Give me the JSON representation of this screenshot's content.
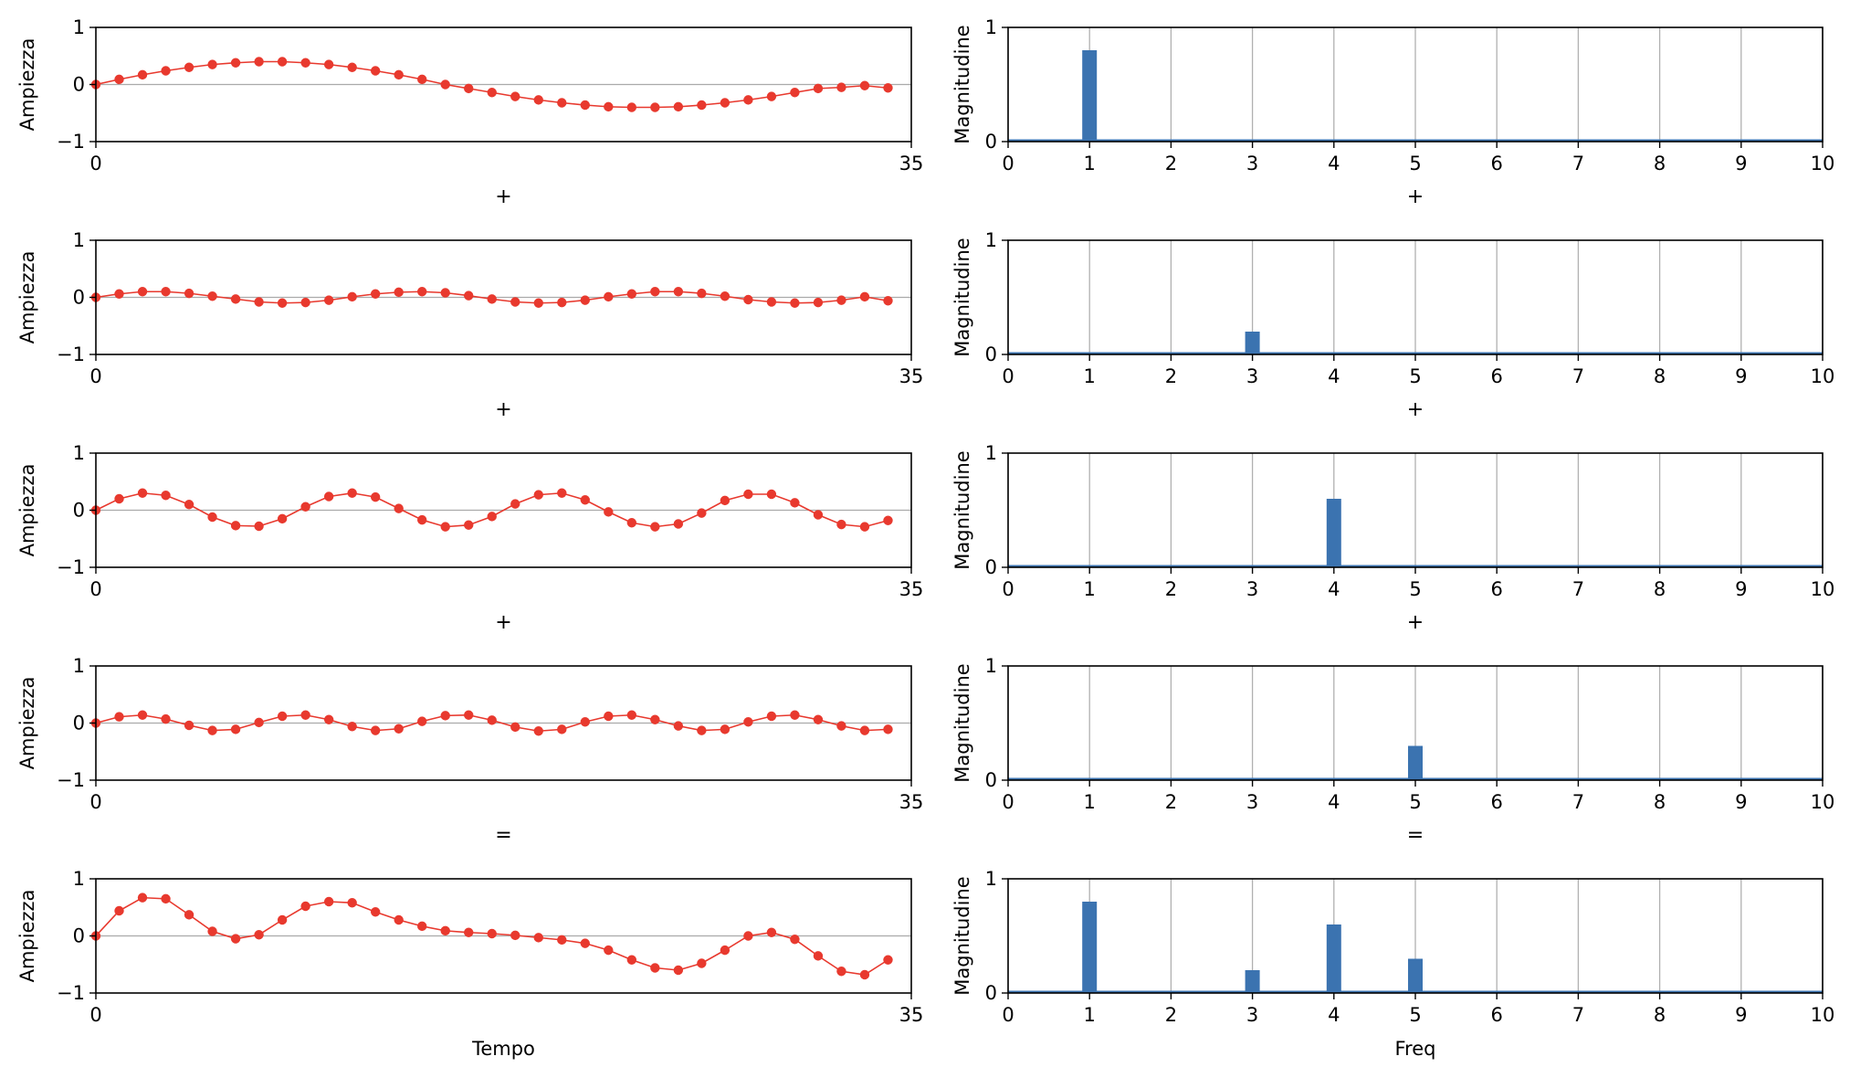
{
  "colors": {
    "time_line": "#e8392e",
    "freq_bar": "#3b73b0",
    "axis": "#000000",
    "grid": "#b0b0b0",
    "baseline": "#aaaaaa"
  },
  "chart_data": [
    {
      "type": "line",
      "ylabel": "Ampiezza",
      "xlim": [
        0,
        35
      ],
      "ylim": [
        -1,
        1
      ],
      "xticks": [
        "0",
        "35"
      ],
      "yticks": [
        "−1",
        "0",
        "1"
      ],
      "x": [
        0,
        1,
        2,
        3,
        4,
        5,
        6,
        7,
        8,
        9,
        10,
        11,
        12,
        13,
        14,
        15,
        16,
        17,
        18,
        19,
        20,
        21,
        22,
        23,
        24,
        25,
        26,
        27,
        28,
        29,
        30,
        31,
        32,
        33,
        34
      ],
      "values": [
        0.0,
        0.09,
        0.17,
        0.24,
        0.3,
        0.35,
        0.38,
        0.4,
        0.4,
        0.38,
        0.35,
        0.3,
        0.24,
        0.17,
        0.09,
        0.0,
        -0.07,
        -0.14,
        -0.21,
        -0.27,
        -0.32,
        -0.36,
        -0.39,
        -0.4,
        -0.4,
        -0.39,
        -0.36,
        -0.32,
        -0.27,
        -0.21,
        -0.14,
        -0.07,
        -0.05,
        -0.02,
        -0.06
      ],
      "operator": "+"
    },
    {
      "type": "line",
      "ylabel": "Ampiezza",
      "xlim": [
        0,
        35
      ],
      "ylim": [
        -1,
        1
      ],
      "xticks": [
        "0",
        "35"
      ],
      "yticks": [
        "−1",
        "0",
        "1"
      ],
      "x": [
        0,
        1,
        2,
        3,
        4,
        5,
        6,
        7,
        8,
        9,
        10,
        11,
        12,
        13,
        14,
        15,
        16,
        17,
        18,
        19,
        20,
        21,
        22,
        23,
        24,
        25,
        26,
        27,
        28,
        29,
        30,
        31,
        32,
        33,
        34
      ],
      "values": [
        0.0,
        0.06,
        0.1,
        0.1,
        0.07,
        0.02,
        -0.03,
        -0.08,
        -0.1,
        -0.09,
        -0.05,
        0.01,
        0.06,
        0.09,
        0.1,
        0.08,
        0.03,
        -0.03,
        -0.08,
        -0.1,
        -0.09,
        -0.05,
        0.01,
        0.06,
        0.1,
        0.1,
        0.07,
        0.02,
        -0.04,
        -0.08,
        -0.1,
        -0.09,
        -0.05,
        0.01,
        -0.06
      ],
      "operator": "+"
    },
    {
      "type": "line",
      "ylabel": "Ampiezza",
      "xlim": [
        0,
        35
      ],
      "ylim": [
        -1,
        1
      ],
      "xticks": [
        "0",
        "35"
      ],
      "yticks": [
        "−1",
        "0",
        "1"
      ],
      "x": [
        0,
        1,
        2,
        3,
        4,
        5,
        6,
        7,
        8,
        9,
        10,
        11,
        12,
        13,
        14,
        15,
        16,
        17,
        18,
        19,
        20,
        21,
        22,
        23,
        24,
        25,
        26,
        27,
        28,
        29,
        30,
        31,
        32,
        33,
        34
      ],
      "values": [
        0.0,
        0.2,
        0.3,
        0.26,
        0.1,
        -0.12,
        -0.27,
        -0.28,
        -0.15,
        0.06,
        0.24,
        0.3,
        0.23,
        0.03,
        -0.17,
        -0.29,
        -0.26,
        -0.11,
        0.11,
        0.27,
        0.3,
        0.18,
        -0.03,
        -0.22,
        -0.29,
        -0.24,
        -0.05,
        0.17,
        0.28,
        0.28,
        0.13,
        -0.08,
        -0.25,
        -0.29,
        -0.18
      ],
      "operator": "+"
    },
    {
      "type": "line",
      "ylabel": "Ampiezza",
      "xlim": [
        0,
        35
      ],
      "ylim": [
        -1,
        1
      ],
      "xticks": [
        "0",
        "35"
      ],
      "yticks": [
        "−1",
        "0",
        "1"
      ],
      "x": [
        0,
        1,
        2,
        3,
        4,
        5,
        6,
        7,
        8,
        9,
        10,
        11,
        12,
        13,
        14,
        15,
        16,
        17,
        18,
        19,
        20,
        21,
        22,
        23,
        24,
        25,
        26,
        27,
        28,
        29,
        30,
        31,
        32,
        33,
        34
      ],
      "values": [
        0.0,
        0.11,
        0.14,
        0.07,
        -0.04,
        -0.13,
        -0.11,
        0.01,
        0.12,
        0.14,
        0.06,
        -0.06,
        -0.13,
        -0.1,
        0.03,
        0.13,
        0.14,
        0.05,
        -0.07,
        -0.14,
        -0.11,
        0.02,
        0.12,
        0.14,
        0.06,
        -0.05,
        -0.13,
        -0.11,
        0.02,
        0.12,
        0.14,
        0.06,
        -0.05,
        -0.13,
        -0.11
      ],
      "operator": "="
    },
    {
      "type": "line",
      "ylabel": "Ampiezza",
      "xlabel": "Tempo",
      "xlim": [
        0,
        35
      ],
      "ylim": [
        -1,
        1
      ],
      "xticks": [
        "0",
        "35"
      ],
      "yticks": [
        "−1",
        "0",
        "1"
      ],
      "x": [
        0,
        1,
        2,
        3,
        4,
        5,
        6,
        7,
        8,
        9,
        10,
        11,
        12,
        13,
        14,
        15,
        16,
        17,
        18,
        19,
        20,
        21,
        22,
        23,
        24,
        25,
        26,
        27,
        28,
        29,
        30,
        31,
        32,
        33,
        34
      ],
      "values": [
        0.0,
        0.44,
        0.67,
        0.65,
        0.37,
        0.08,
        -0.05,
        0.02,
        0.28,
        0.52,
        0.6,
        0.58,
        0.42,
        0.28,
        0.17,
        0.09,
        0.06,
        0.04,
        0.01,
        -0.03,
        -0.07,
        -0.13,
        -0.25,
        -0.42,
        -0.56,
        -0.6,
        -0.48,
        -0.25,
        0.0,
        0.06,
        -0.06,
        -0.35,
        -0.62,
        -0.68,
        -0.42
      ]
    },
    {
      "type": "bar",
      "ylabel": "Magnitudine",
      "xlim": [
        0,
        10
      ],
      "ylim": [
        0,
        1
      ],
      "xticks": [
        "0",
        "1",
        "2",
        "3",
        "4",
        "5",
        "6",
        "7",
        "8",
        "9",
        "10"
      ],
      "yticks": [
        "0",
        "1"
      ],
      "grid": "x",
      "x": [
        1
      ],
      "values": [
        0.8
      ],
      "operator": "+"
    },
    {
      "type": "bar",
      "ylabel": "Magnitudine",
      "xlim": [
        0,
        10
      ],
      "ylim": [
        0,
        1
      ],
      "xticks": [
        "0",
        "1",
        "2",
        "3",
        "4",
        "5",
        "6",
        "7",
        "8",
        "9",
        "10"
      ],
      "yticks": [
        "0",
        "1"
      ],
      "grid": "x",
      "x": [
        3
      ],
      "values": [
        0.2
      ],
      "operator": "+"
    },
    {
      "type": "bar",
      "ylabel": "Magnitudine",
      "xlim": [
        0,
        10
      ],
      "ylim": [
        0,
        1
      ],
      "xticks": [
        "0",
        "1",
        "2",
        "3",
        "4",
        "5",
        "6",
        "7",
        "8",
        "9",
        "10"
      ],
      "yticks": [
        "0",
        "1"
      ],
      "grid": "x",
      "x": [
        4
      ],
      "values": [
        0.6
      ],
      "operator": "+"
    },
    {
      "type": "bar",
      "ylabel": "Magnitudine",
      "xlim": [
        0,
        10
      ],
      "ylim": [
        0,
        1
      ],
      "xticks": [
        "0",
        "1",
        "2",
        "3",
        "4",
        "5",
        "6",
        "7",
        "8",
        "9",
        "10"
      ],
      "yticks": [
        "0",
        "1"
      ],
      "grid": "x",
      "x": [
        5
      ],
      "values": [
        0.3
      ],
      "operator": "="
    },
    {
      "type": "bar",
      "ylabel": "Magnitudine",
      "xlabel": "Freq",
      "xlim": [
        0,
        10
      ],
      "ylim": [
        0,
        1
      ],
      "xticks": [
        "0",
        "1",
        "2",
        "3",
        "4",
        "5",
        "6",
        "7",
        "8",
        "9",
        "10"
      ],
      "yticks": [
        "0",
        "1"
      ],
      "grid": "x",
      "x": [
        1,
        3,
        4,
        5
      ],
      "values": [
        0.8,
        0.2,
        0.6,
        0.3
      ]
    }
  ]
}
